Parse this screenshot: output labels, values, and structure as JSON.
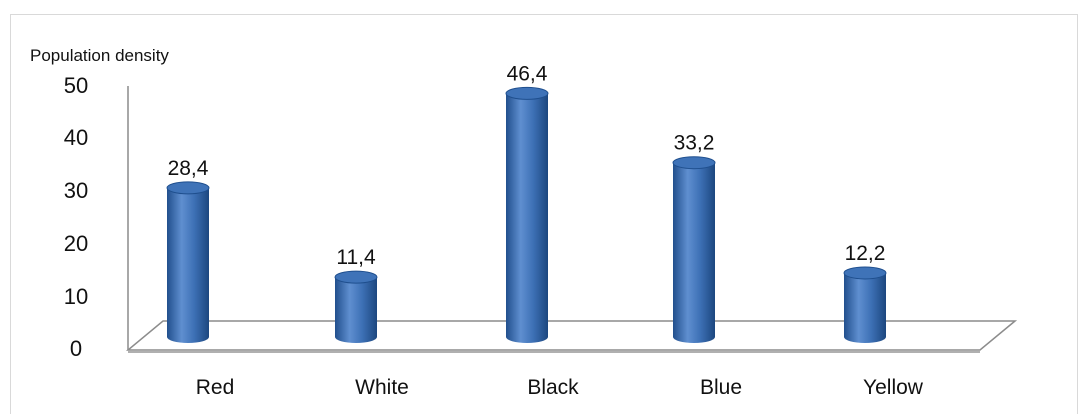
{
  "chart_data": {
    "type": "bar",
    "ylabel": "Population  density",
    "categories": [
      "Red",
      "White",
      "Black",
      "Blue",
      "Yellow"
    ],
    "values": [
      28.4,
      11.4,
      46.4,
      33.2,
      12.2
    ],
    "value_labels": [
      "28,4",
      "11,4",
      "46,4",
      "33,2",
      "12,2"
    ],
    "ylim": [
      0,
      50
    ],
    "yticks": [
      "0",
      "10",
      "20",
      "30",
      "40",
      "50"
    ],
    "grid": false,
    "bar_style": "3d-cylinder",
    "colors": {
      "bar": "#3f73b8",
      "bar_dark": "#1f4f8e",
      "bar_light": "#6d9ad6",
      "axis": "#8c8c8c"
    }
  }
}
